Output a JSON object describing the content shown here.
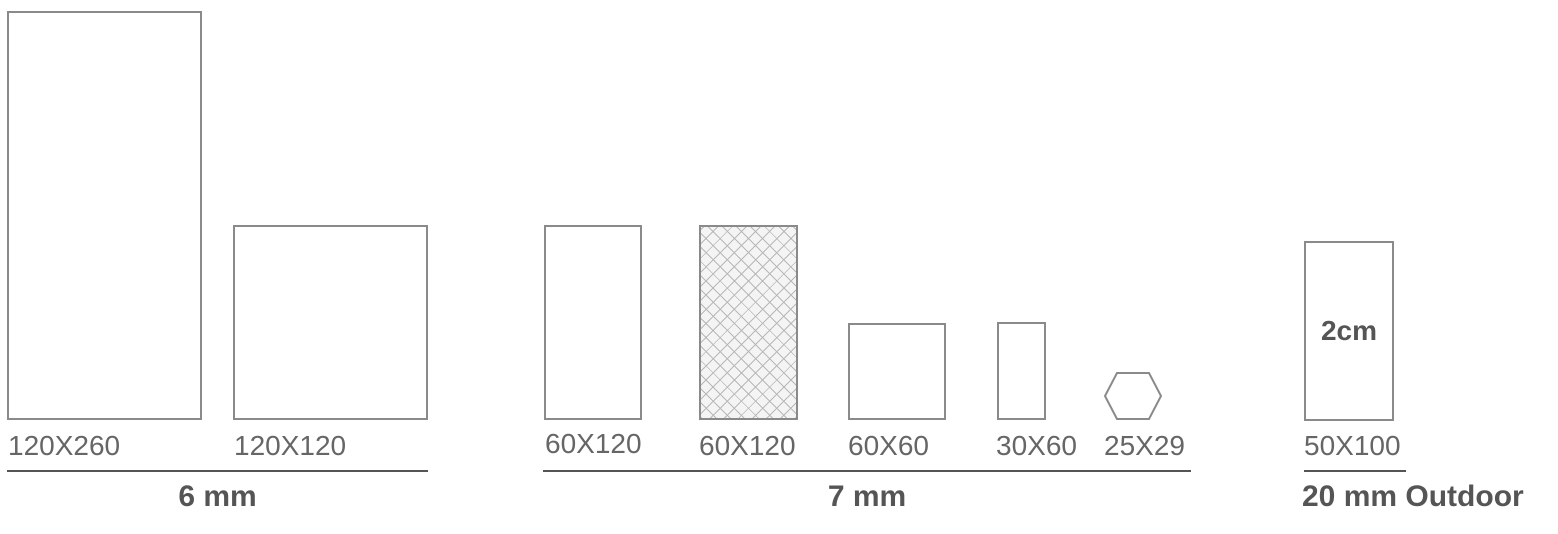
{
  "groups": [
    {
      "label": "6 mm",
      "tiles": [
        {
          "size": "120X260"
        },
        {
          "size": "120X120"
        }
      ]
    },
    {
      "label": "7 mm",
      "tiles": [
        {
          "size": "60X120"
        },
        {
          "size": "60X120",
          "pattern": "crosshatch"
        },
        {
          "size": "60X60"
        },
        {
          "size": "30X60"
        },
        {
          "size": "25X29",
          "shape": "hexagon"
        }
      ]
    },
    {
      "label": "20 mm Outdoor",
      "tiles": [
        {
          "size": "50X100",
          "inner_label": "2cm"
        }
      ]
    }
  ],
  "colors": {
    "outline": "#8a8a8a",
    "text": "#555555",
    "hatch": "#b8b8b8"
  }
}
